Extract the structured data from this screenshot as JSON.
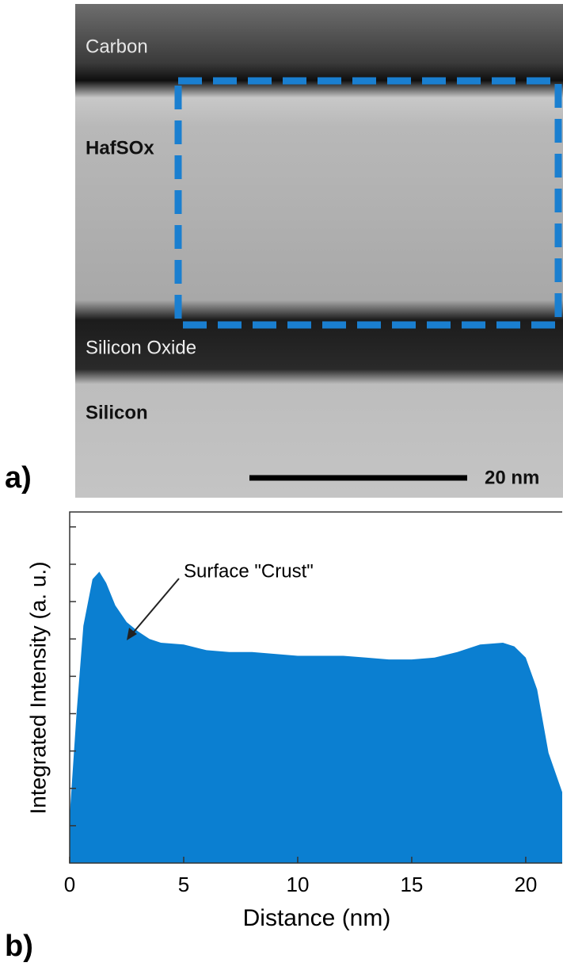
{
  "panel_labels": [
    "a)",
    "b)"
  ],
  "image": {
    "layers": [
      "Carbon",
      "HafSOx",
      "Silicon Oxide",
      "Silicon"
    ],
    "scale_bar": "20 nm"
  },
  "chart_data": {
    "type": "area",
    "x_label": "Distance (nm)",
    "y_label": "Integrated Intensity (a. u.)",
    "annotation": "Surface \"Crust\"",
    "color": "#0b7fd1",
    "x": [
      0,
      0.3,
      0.6,
      1.0,
      1.3,
      1.6,
      2.0,
      2.5,
      3,
      3.5,
      4,
      5,
      6,
      7,
      8,
      9,
      10,
      11,
      12,
      13,
      14,
      15,
      16,
      17,
      18,
      19,
      19.5,
      20,
      20.5,
      21,
      21.6
    ],
    "values": [
      1.25,
      4.0,
      6.35,
      7.6,
      7.8,
      7.5,
      6.9,
      6.45,
      6.2,
      6.0,
      5.9,
      5.85,
      5.7,
      5.65,
      5.65,
      5.6,
      5.55,
      5.55,
      5.55,
      5.5,
      5.45,
      5.45,
      5.5,
      5.65,
      5.85,
      5.9,
      5.8,
      5.5,
      4.65,
      2.95,
      1.9
    ],
    "xlim": [
      0,
      21.6
    ],
    "xticks": [
      0,
      5,
      10,
      15,
      20
    ],
    "ylim": [
      0,
      9.4
    ],
    "yticks": [
      1,
      2,
      3,
      4,
      5,
      6,
      7,
      8,
      9
    ]
  }
}
